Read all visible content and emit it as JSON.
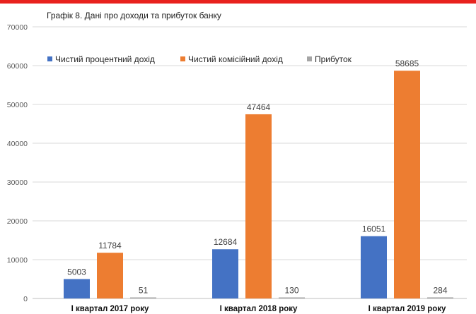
{
  "chart_data": {
    "type": "bar",
    "title": "Графік 8. Дані про доходи та прибуток банку",
    "categories": [
      "І квартал 2017 року",
      "І квартал 2018 року",
      "І квартал 2019 року"
    ],
    "series": [
      {
        "name": "Чистий процентний дохід",
        "color": "#4472c4",
        "values": [
          5003,
          12684,
          16051
        ]
      },
      {
        "name": "Чистий комісійний дохід",
        "color": "#ed7d31",
        "values": [
          11784,
          47464,
          58685
        ]
      },
      {
        "name": "Прибуток",
        "color": "#a5a5a5",
        "values": [
          51,
          130,
          284
        ]
      }
    ],
    "y_ticks": [
      "0",
      "10000",
      "20000",
      "30000",
      "40000",
      "50000",
      "60000",
      "70000"
    ],
    "ylim": [
      0,
      70000
    ],
    "grid": true,
    "legend_position": "top-left"
  }
}
